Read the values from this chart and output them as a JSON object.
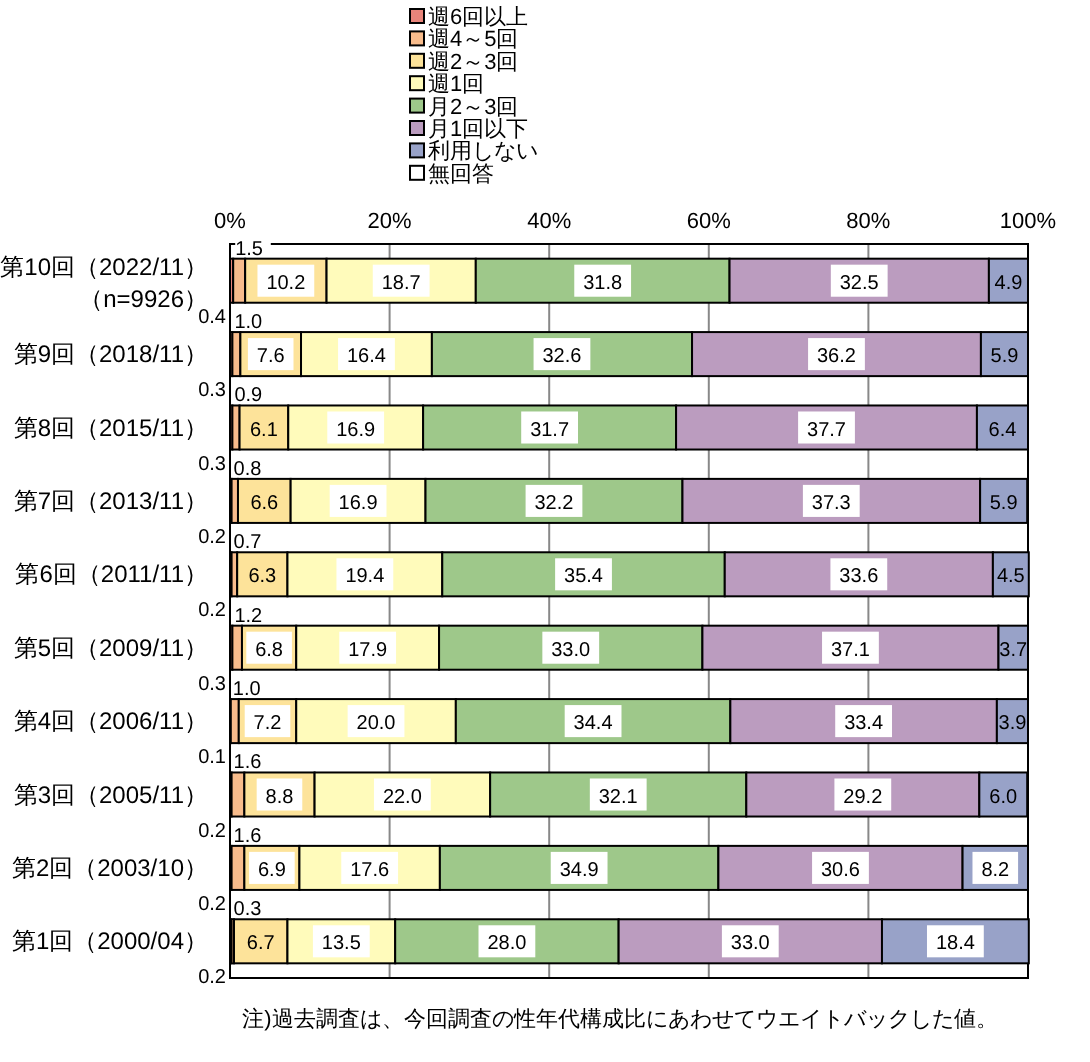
{
  "chart_data": {
    "type": "bar",
    "orientation": "horizontal",
    "stacked": true,
    "categories": [
      "第10回（2022/11）（n=9926）",
      "第9回（2018/11）",
      "第8回（2015/11）",
      "第7回（2013/11）",
      "第6回（2011/11）",
      "第5回（2009/11）",
      "第4回（2006/11）",
      "第3回（2005/11）",
      "第2回（2003/10）",
      "第1回（2000/04）"
    ],
    "series": [
      {
        "name": "週6回以上",
        "color": "#e8847a",
        "values": [
          0.4,
          0.3,
          0.3,
          0.2,
          0.2,
          0.3,
          0.1,
          0.2,
          0.2,
          0.2
        ],
        "value_labels": [
          "0.4",
          "0.3",
          "0.3",
          "0.2",
          "0.2",
          "0.3",
          "0.1",
          "0.2",
          "0.2",
          "0.2"
        ]
      },
      {
        "name": "週4～5回",
        "color": "#f8bc8c",
        "values": [
          1.5,
          1.0,
          0.9,
          0.8,
          0.7,
          1.2,
          1.0,
          1.6,
          1.6,
          0.3
        ],
        "value_labels": [
          "1.5",
          "1.0",
          "0.9",
          "0.8",
          "0.7",
          "1.2",
          "1.0",
          "1.6",
          "1.6",
          "0.3"
        ]
      },
      {
        "name": "週2～3回",
        "color": "#fde39a",
        "values": [
          10.2,
          7.6,
          6.1,
          6.6,
          6.3,
          6.8,
          7.2,
          8.8,
          6.9,
          6.7
        ],
        "value_labels": [
          "10.2",
          "7.6",
          "6.1",
          "6.6",
          "6.3",
          "6.8",
          "7.2",
          "8.8",
          "6.9",
          "6.7"
        ]
      },
      {
        "name": "週1回",
        "color": "#fffbbb",
        "values": [
          18.7,
          16.4,
          16.9,
          16.9,
          19.4,
          17.9,
          20.0,
          22.0,
          17.6,
          13.5
        ],
        "value_labels": [
          "18.7",
          "16.4",
          "16.9",
          "16.9",
          "19.4",
          "17.9",
          "20.0",
          "22.0",
          "17.6",
          "13.5"
        ]
      },
      {
        "name": "月2～3回",
        "color": "#9ec88a",
        "values": [
          31.8,
          32.6,
          31.7,
          32.2,
          35.4,
          33.0,
          34.4,
          32.1,
          34.9,
          28.0
        ],
        "value_labels": [
          "31.8",
          "32.6",
          "31.7",
          "32.2",
          "35.4",
          "33.0",
          "34.4",
          "32.1",
          "34.9",
          "28.0"
        ]
      },
      {
        "name": "月1回以下",
        "color": "#bb9cbf",
        "values": [
          32.5,
          36.2,
          37.7,
          37.3,
          33.6,
          37.1,
          33.4,
          29.2,
          30.6,
          33.0
        ],
        "value_labels": [
          "32.5",
          "36.2",
          "37.7",
          "37.3",
          "33.6",
          "37.1",
          "33.4",
          "29.2",
          "30.6",
          "33.0"
        ]
      },
      {
        "name": "利用しない",
        "color": "#98a2c8",
        "values": [
          4.9,
          5.9,
          6.4,
          5.9,
          4.5,
          3.7,
          3.9,
          6.0,
          8.2,
          18.4
        ],
        "value_labels": [
          "4.9",
          "5.9",
          "6.4",
          "5.9",
          "4.5",
          "3.7",
          "3.9",
          "6.0",
          "8.2",
          "18.4"
        ]
      },
      {
        "name": "無回答",
        "color": "#ffffff",
        "values": [
          null,
          null,
          null,
          null,
          null,
          null,
          null,
          null,
          null,
          null
        ]
      }
    ],
    "xlim": [
      0,
      100
    ],
    "xticks": [
      {
        "value": 0,
        "label": "0%"
      },
      {
        "value": 20,
        "label": "20%"
      },
      {
        "value": 40,
        "label": "40%"
      },
      {
        "value": 60,
        "label": "60%"
      },
      {
        "value": 80,
        "label": "80%"
      },
      {
        "value": 100,
        "label": "100%"
      }
    ],
    "grid": "x",
    "legend": "top",
    "annotations": [
      "注)過去調査は、今回調査の性年代構成比にあわせてウエイトバックした値。"
    ]
  }
}
